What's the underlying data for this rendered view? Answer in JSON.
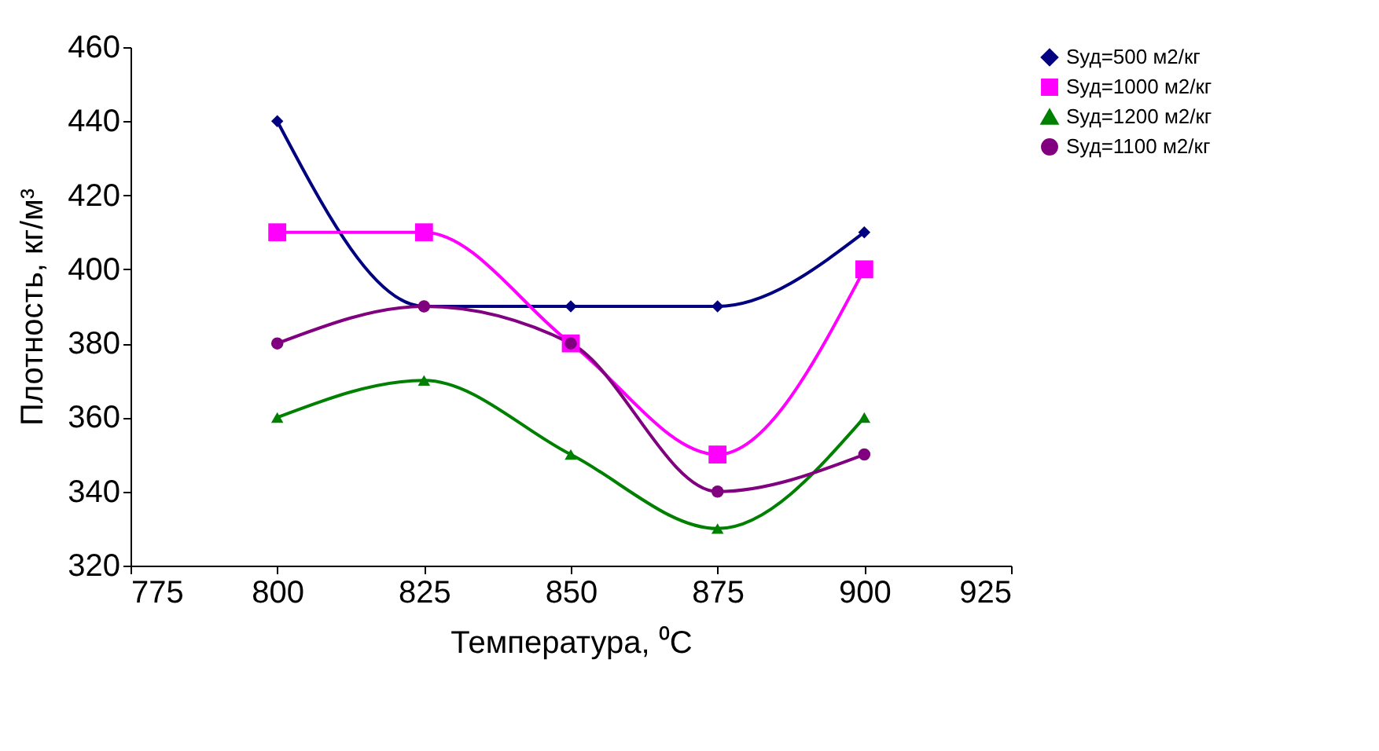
{
  "chart_data": {
    "type": "line",
    "xlabel": "Температура, ⁰C",
    "ylabel": "Плотность, кг/м³",
    "x": [
      800,
      825,
      850,
      875,
      900
    ],
    "series": [
      {
        "name": "Sуд=500 м2/кг",
        "color": "#000080",
        "marker": "diamond",
        "values": [
          440,
          390,
          390,
          390,
          410
        ]
      },
      {
        "name": "Sуд=1000 м2/кг",
        "color": "#ff00ff",
        "marker": "square",
        "values": [
          410,
          410,
          380,
          350,
          400
        ]
      },
      {
        "name": "Sуд=1200 м2/кг",
        "color": "#008000",
        "marker": "triangle",
        "values": [
          360,
          370,
          350,
          330,
          360
        ]
      },
      {
        "name": "Sуд=1100 м2/кг",
        "color": "#800080",
        "marker": "circle",
        "values": [
          380,
          390,
          380,
          340,
          350
        ]
      }
    ],
    "xlim": [
      775,
      925
    ],
    "xticks": [
      775,
      800,
      825,
      850,
      875,
      900,
      925
    ],
    "ylim": [
      320,
      460
    ],
    "yticks": [
      320,
      340,
      360,
      380,
      400,
      420,
      440,
      460
    ],
    "grid": false,
    "legend": "top right",
    "line_style": "solid"
  }
}
